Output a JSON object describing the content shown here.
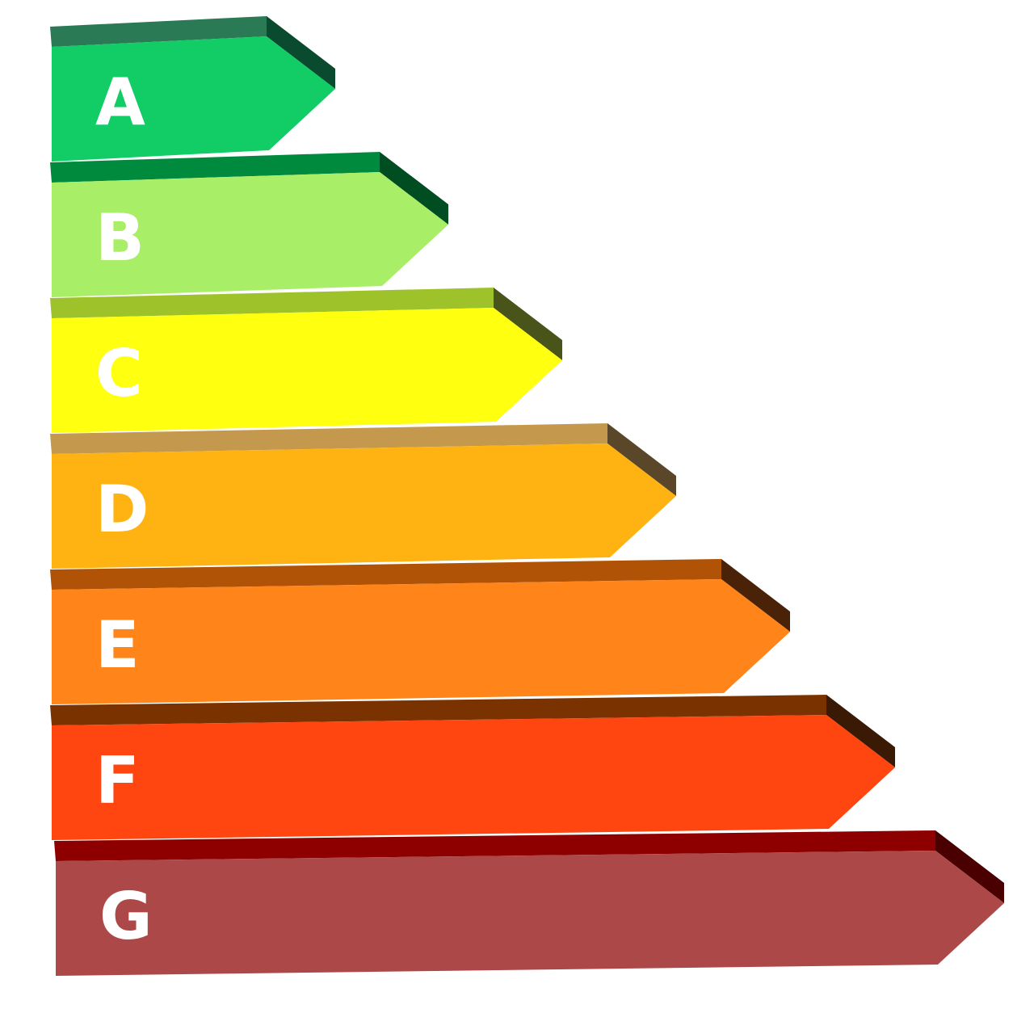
{
  "bars": [
    {
      "label": "A"
    },
    {
      "label": "B"
    },
    {
      "label": "C"
    },
    {
      "label": "D"
    },
    {
      "label": "E"
    },
    {
      "label": "F"
    },
    {
      "label": "G"
    }
  ]
}
